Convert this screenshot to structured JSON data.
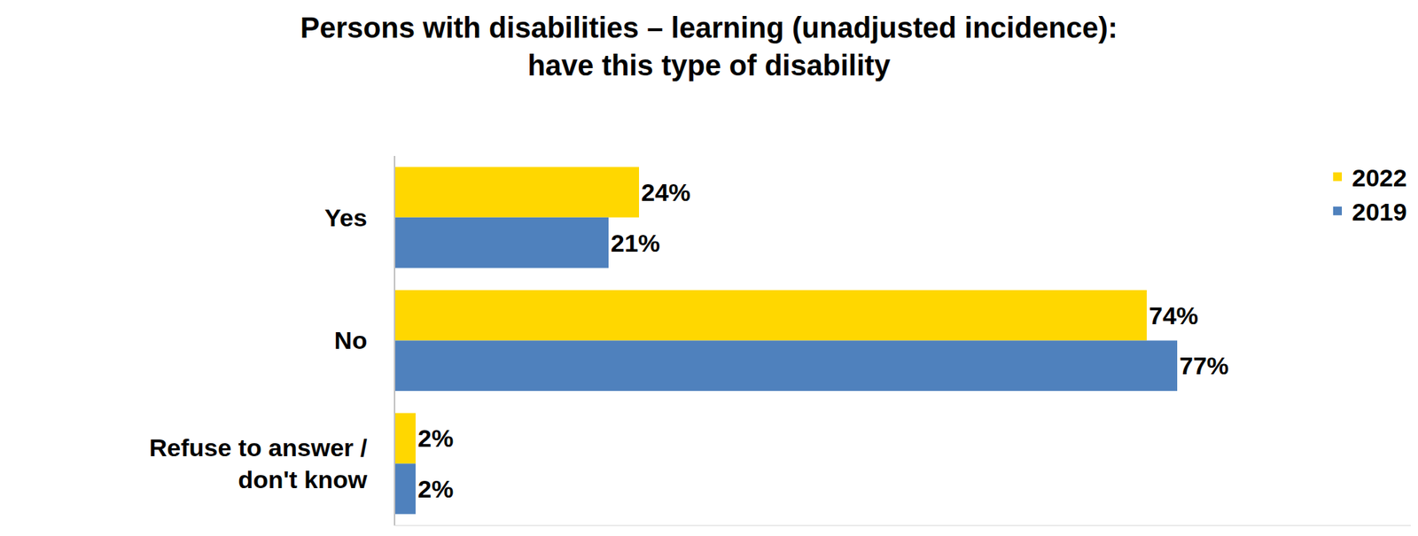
{
  "chart_data": {
    "type": "bar",
    "orientation": "horizontal",
    "title": "Persons with disabilities – learning (unadjusted incidence): have this type of disability",
    "categories": [
      "Yes",
      "No",
      "Refuse to answer / don't know"
    ],
    "series": [
      {
        "name": "2022",
        "color": "#FFD700",
        "values": [
          24,
          74,
          2
        ],
        "value_labels": [
          "24%",
          "74%",
          "2%"
        ]
      },
      {
        "name": "2019",
        "color": "#4F81BD",
        "values": [
          21,
          77,
          2
        ],
        "value_labels": [
          "21%",
          "77%",
          "2%"
        ]
      }
    ],
    "xlim": [
      0,
      100
    ],
    "data_labels": true,
    "tick_labels": "y",
    "legend": "top right",
    "grid": false
  }
}
